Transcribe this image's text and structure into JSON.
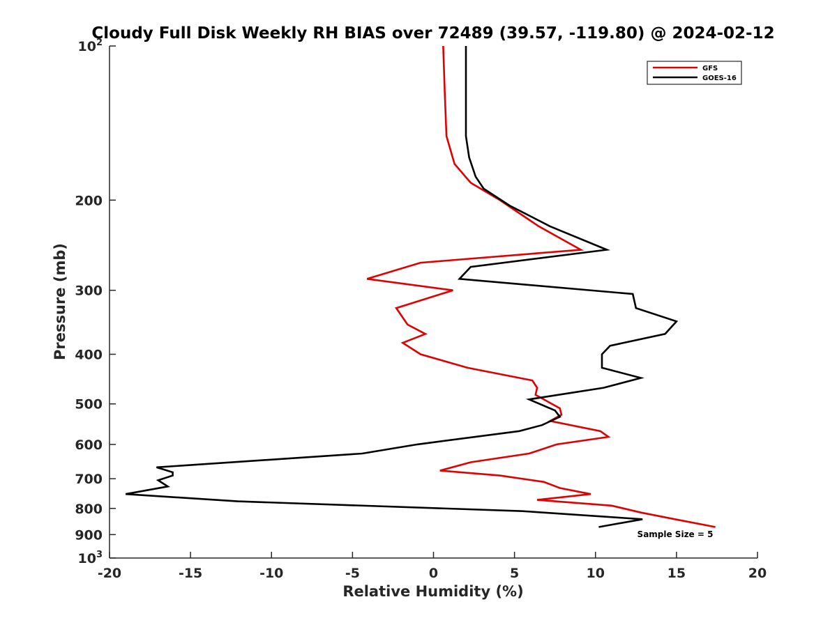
{
  "chart_data": {
    "type": "line",
    "title": "Cloudy Full Disk Weekly RH BIAS over 72489 (39.57, -119.80) @ 2024-02-12",
    "xlabel": "Relative Humidity (%)",
    "ylabel": "Pressure (mb)",
    "xlim": [
      -20,
      20
    ],
    "ylim": [
      100,
      1000
    ],
    "y_scale": "log",
    "y_reversed": true,
    "x_ticks": [
      "-20",
      "-15",
      "-10",
      "-5",
      "0",
      "5",
      "10",
      "15",
      "20"
    ],
    "y_ticks": [
      {
        "value": 100,
        "base": "10",
        "exp": "2"
      },
      {
        "value": 200,
        "label": "200"
      },
      {
        "value": 300,
        "label": "300"
      },
      {
        "value": 400,
        "label": "400"
      },
      {
        "value": 500,
        "label": "500"
      },
      {
        "value": 600,
        "label": "600"
      },
      {
        "value": 700,
        "label": "700"
      },
      {
        "value": 800,
        "label": "800"
      },
      {
        "value": 900,
        "label": "900"
      },
      {
        "value": 1000,
        "base": "10",
        "exp": "3"
      }
    ],
    "legend": {
      "position": "top-right"
    },
    "annotation": "Sample Size = 5",
    "series": [
      {
        "name": "GFS",
        "color": "#e00000",
        "points": [
          [
            0.6,
            100
          ],
          [
            0.7,
            125
          ],
          [
            0.8,
            150
          ],
          [
            1.3,
            170
          ],
          [
            2.3,
            185
          ],
          [
            4.1,
            200
          ],
          [
            6.5,
            225
          ],
          [
            9.1,
            250
          ],
          [
            -0.8,
            265
          ],
          [
            -4.1,
            285
          ],
          [
            1.2,
            300
          ],
          [
            -2.3,
            325
          ],
          [
            -1.6,
            350
          ],
          [
            -0.5,
            365
          ],
          [
            -1.9,
            380
          ],
          [
            -0.8,
            400
          ],
          [
            2.1,
            425
          ],
          [
            6.1,
            450
          ],
          [
            6.4,
            465
          ],
          [
            6.3,
            480
          ],
          [
            7.8,
            510
          ],
          [
            7.9,
            525
          ],
          [
            7.2,
            540
          ],
          [
            10.3,
            565
          ],
          [
            10.8,
            580
          ],
          [
            7.6,
            600
          ],
          [
            5.9,
            625
          ],
          [
            2.3,
            650
          ],
          [
            0.4,
            675
          ],
          [
            4.1,
            690
          ],
          [
            6.8,
            710
          ],
          [
            7.8,
            730
          ],
          [
            9.7,
            750
          ],
          [
            6.4,
            770
          ],
          [
            11.0,
            790
          ],
          [
            12.8,
            815
          ],
          [
            14.9,
            840
          ],
          [
            17.4,
            870
          ]
        ]
      },
      {
        "name": "GOES-16",
        "color": "#000000",
        "points": [
          [
            2.0,
            100
          ],
          [
            2.0,
            125
          ],
          [
            2.0,
            150
          ],
          [
            2.2,
            165
          ],
          [
            2.6,
            180
          ],
          [
            3.1,
            190
          ],
          [
            4.7,
            205
          ],
          [
            7.2,
            225
          ],
          [
            10.7,
            250
          ],
          [
            2.3,
            270
          ],
          [
            1.6,
            285
          ],
          [
            12.3,
            305
          ],
          [
            12.5,
            325
          ],
          [
            15.0,
            345
          ],
          [
            14.3,
            365
          ],
          [
            10.9,
            385
          ],
          [
            10.4,
            400
          ],
          [
            10.4,
            425
          ],
          [
            12.8,
            445
          ],
          [
            10.5,
            465
          ],
          [
            5.9,
            490
          ],
          [
            7.5,
            515
          ],
          [
            7.8,
            530
          ],
          [
            6.7,
            550
          ],
          [
            5.3,
            565
          ],
          [
            -1.0,
            600
          ],
          [
            -4.4,
            625
          ],
          [
            -17.1,
            665
          ],
          [
            -16.1,
            680
          ],
          [
            -16.1,
            690
          ],
          [
            -17.0,
            705
          ],
          [
            -16.4,
            725
          ],
          [
            -19.0,
            750
          ],
          [
            -12.1,
            775
          ],
          [
            5.5,
            810
          ],
          [
            12.9,
            840
          ],
          [
            10.2,
            870
          ]
        ]
      }
    ]
  }
}
